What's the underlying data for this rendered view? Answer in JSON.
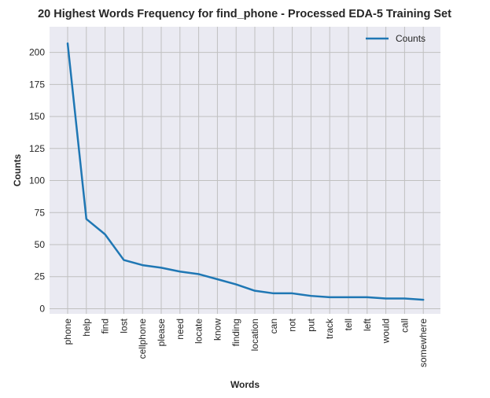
{
  "chart_data": {
    "type": "line",
    "title": "20 Highest Words Frequency for find_phone - Processed EDA-5 Training Set",
    "xlabel": "Words",
    "ylabel": "Counts",
    "categories": [
      "phone",
      "help",
      "find",
      "lost",
      "cellphone",
      "please",
      "need",
      "locate",
      "know",
      "finding",
      "location",
      "can",
      "not",
      "put",
      "track",
      "tell",
      "left",
      "would",
      "call",
      "somewhere"
    ],
    "series": [
      {
        "name": "Counts",
        "color": "#1f77b4",
        "values": [
          207,
          70,
          58,
          38,
          34,
          32,
          29,
          27,
          23,
          19,
          14,
          12,
          12,
          10,
          9,
          9,
          9,
          8,
          8,
          7
        ]
      }
    ],
    "ylim": [
      -4,
      220
    ],
    "yticks": [
      0,
      25,
      50,
      75,
      100,
      125,
      150,
      175,
      200
    ],
    "grid": true,
    "legend_position": "top-right",
    "colors": {
      "plot_background": "#eaeaf2",
      "grid": "#c0c0c0",
      "text": "#262626"
    }
  }
}
